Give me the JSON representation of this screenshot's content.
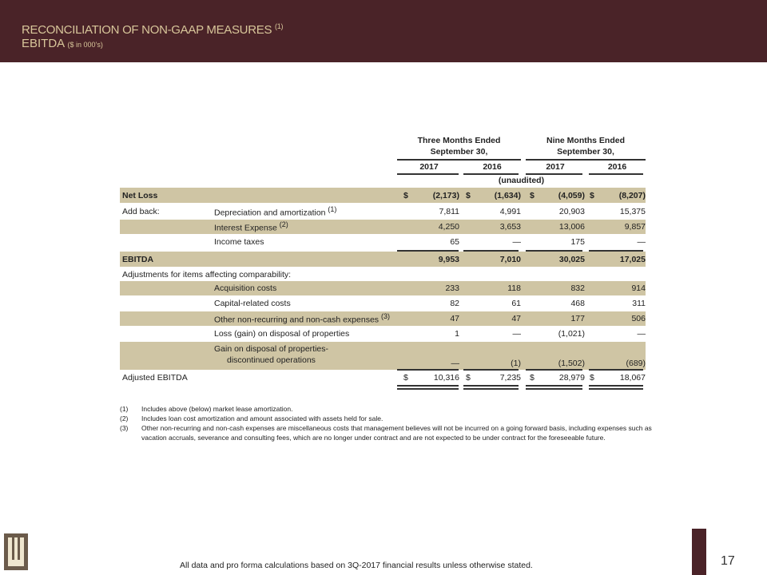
{
  "header": {
    "title": "RECONCILIATION OF NON-GAAP MEASURES",
    "title_sup": "(1)",
    "subtitle": "EBITDA",
    "subtitle_note": "($ in 000’s)"
  },
  "table": {
    "group_headers": [
      {
        "l1": "Three Months Ended",
        "l2": "September 30,"
      },
      {
        "l1": "Nine Months Ended",
        "l2": "September 30,"
      }
    ],
    "years": [
      "2017",
      "2016",
      "2017",
      "2016"
    ],
    "unaudited": "(unaudited)",
    "rows": [
      {
        "label": "Net Loss",
        "sub": "",
        "sup": "",
        "values": [
          "(2,173)",
          "(1,634)",
          "(4,059)",
          "(8,207)"
        ],
        "dollar": true,
        "shaded": true
      },
      {
        "label": "Add back:",
        "sub": "Depreciation and amortization",
        "sup": "(1)",
        "values": [
          "7,811",
          "4,991",
          "20,903",
          "15,375"
        ],
        "dollar": false,
        "shaded": false
      },
      {
        "label": "",
        "sub": "Interest Expense",
        "sup": "(2)",
        "values": [
          "4,250",
          "3,653",
          "13,006",
          "9,857"
        ],
        "dollar": false,
        "shaded": true
      },
      {
        "label": "",
        "sub": "Income taxes",
        "sup": "",
        "values": [
          "65",
          "—",
          "175",
          "—"
        ],
        "dollar": false,
        "shaded": false
      },
      {
        "label": "EBITDA",
        "sub": "",
        "sup": "",
        "values": [
          "9,953",
          "7,010",
          "30,025",
          "17,025"
        ],
        "dollar": false,
        "shaded": true
      },
      {
        "label": "Adjustments for items affecting comparability:",
        "sub": "",
        "sup": "",
        "values": [
          "",
          "",
          "",
          ""
        ],
        "dollar": false,
        "shaded": false
      },
      {
        "label": "",
        "sub": "Acquisition costs",
        "sup": "",
        "values": [
          "233",
          "118",
          "832",
          "914"
        ],
        "dollar": false,
        "shaded": true
      },
      {
        "label": "",
        "sub": "Capital-related costs",
        "sup": "",
        "values": [
          "82",
          "61",
          "468",
          "311"
        ],
        "dollar": false,
        "shaded": false
      },
      {
        "label": "",
        "sub": "Other non-recurring and non-cash expenses",
        "sup": "(3)",
        "values": [
          "47",
          "47",
          "177",
          "506"
        ],
        "dollar": false,
        "shaded": true
      },
      {
        "label": "",
        "sub": "Loss (gain) on disposal of properties",
        "sup": "",
        "values": [
          "1",
          "—",
          "(1,021)",
          "—"
        ],
        "dollar": false,
        "shaded": false
      },
      {
        "label": "",
        "sub": "Gain on disposal of properties-",
        "sub2": "discontinued operations",
        "sup": "",
        "values": [
          "—",
          "(1)",
          "(1,502)",
          "(689)"
        ],
        "dollar": false,
        "shaded": true
      },
      {
        "label": "Adjusted EBITDA",
        "sub": "",
        "sup": "",
        "values": [
          "10,316",
          "7,235",
          "28,979",
          "18,067"
        ],
        "dollar": true,
        "shaded": false
      }
    ],
    "dollar_sign": "$"
  },
  "footnotes": [
    {
      "n": "(1)",
      "text": "Includes above (below) market lease amortization."
    },
    {
      "n": "(2)",
      "text": "Includes loan cost amortization and amount associated with assets held for sale."
    },
    {
      "n": "(3)",
      "text": "Other non-recurring and non-cash expenses are miscellaneous costs that management believes will not be incurred on a going forward basis, including expenses such as vacation accruals, severance and consulting fees, which are no longer under contract and are not expected to be under contract for the foreseeable future."
    }
  ],
  "footer": {
    "note": "All data and pro forma calculations based on 3Q-2017 financial results unless otherwise stated.",
    "page": "17",
    "logo_letter": "W"
  },
  "colors": {
    "brand": "#4a2328",
    "title": "#d8c69a",
    "shade": "#cfc5a4"
  }
}
